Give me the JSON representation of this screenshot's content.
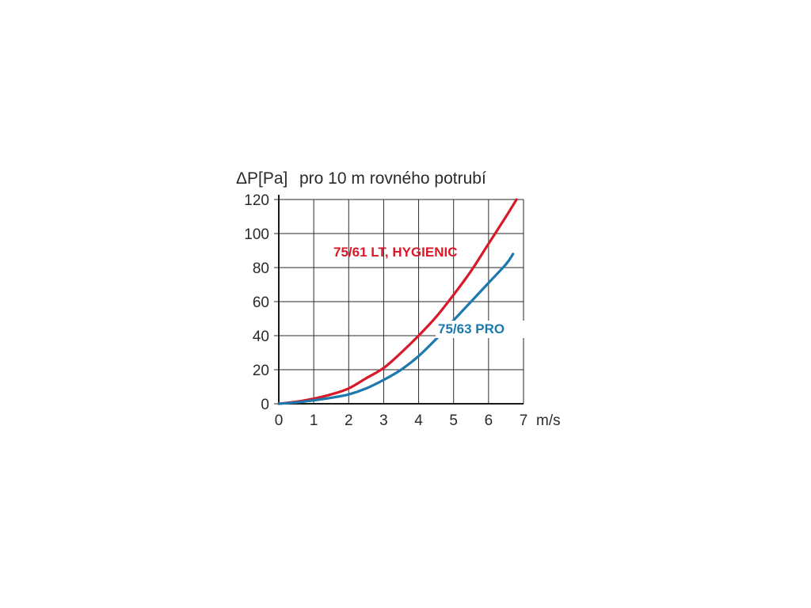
{
  "chart_data": {
    "type": "line",
    "title": "pro 10 m rovného potrubí",
    "ylabel": "ΔP[Pa]",
    "xlabel": "m/s",
    "xlim": [
      0,
      7
    ],
    "ylim": [
      0,
      120
    ],
    "x_ticks": [
      "0",
      "1",
      "2",
      "3",
      "4",
      "5",
      "6",
      "7"
    ],
    "y_ticks": [
      "0",
      "20",
      "40",
      "60",
      "80",
      "100",
      "120"
    ],
    "grid": true,
    "series": [
      {
        "name": "75/61 LT, HYGIENIC",
        "color": "#d7192a",
        "x": [
          0,
          0.5,
          1,
          1.5,
          2,
          2.5,
          3,
          3.5,
          4,
          4.5,
          5,
          5.5,
          6,
          6.5,
          6.8
        ],
        "y": [
          0,
          1.2,
          3,
          5.5,
          9,
          15,
          21,
          30,
          40,
          51,
          64,
          78,
          94,
          110,
          120
        ]
      },
      {
        "name": "75/63 PRO",
        "color": "#1c78ad",
        "x": [
          0,
          0.5,
          1,
          1.5,
          2,
          2.5,
          3,
          3.5,
          4,
          4.5,
          5,
          5.5,
          6,
          6.5,
          6.7
        ],
        "y": [
          0,
          0.8,
          2,
          3.5,
          5.5,
          9,
          14,
          20,
          28,
          38,
          49,
          60,
          71,
          82,
          88
        ]
      }
    ]
  }
}
